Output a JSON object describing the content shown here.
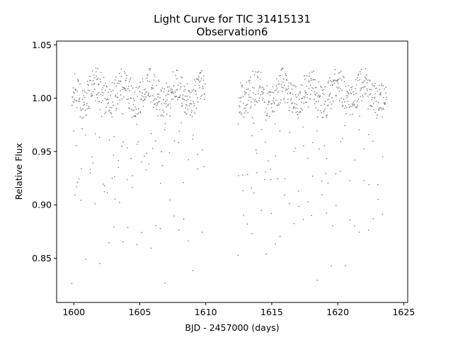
{
  "chart_data": {
    "type": "scatter",
    "title": "Light Curve for TIC 31415131",
    "subtitle": "Observation6",
    "xlabel": "BJD - 2457000 (days)",
    "ylabel": "Relative Flux",
    "xlim": [
      1598.7,
      1625.3
    ],
    "ylim": [
      0.8085,
      1.0535
    ],
    "xticks": [
      1600,
      1605,
      1610,
      1615,
      1620,
      1625
    ],
    "yticks": [
      0.85,
      0.9,
      0.95,
      1.0,
      1.05
    ],
    "ytick_labels": [
      "0.85",
      "0.90",
      "0.95",
      "1.00",
      "1.05"
    ],
    "grid": false,
    "legend": "none",
    "point_color": "#777777",
    "series": [
      {
        "segments": [
          {
            "start": 1599.85,
            "end": 1609.95
          },
          {
            "start": 1612.45,
            "end": 1623.7
          }
        ],
        "cadence_days": 0.02,
        "baseline_flux": 1.005,
        "scatter_amplitude": 0.016,
        "eclipse_period_days": 0.353,
        "eclipse_min_flux": 0.825
      }
    ]
  }
}
